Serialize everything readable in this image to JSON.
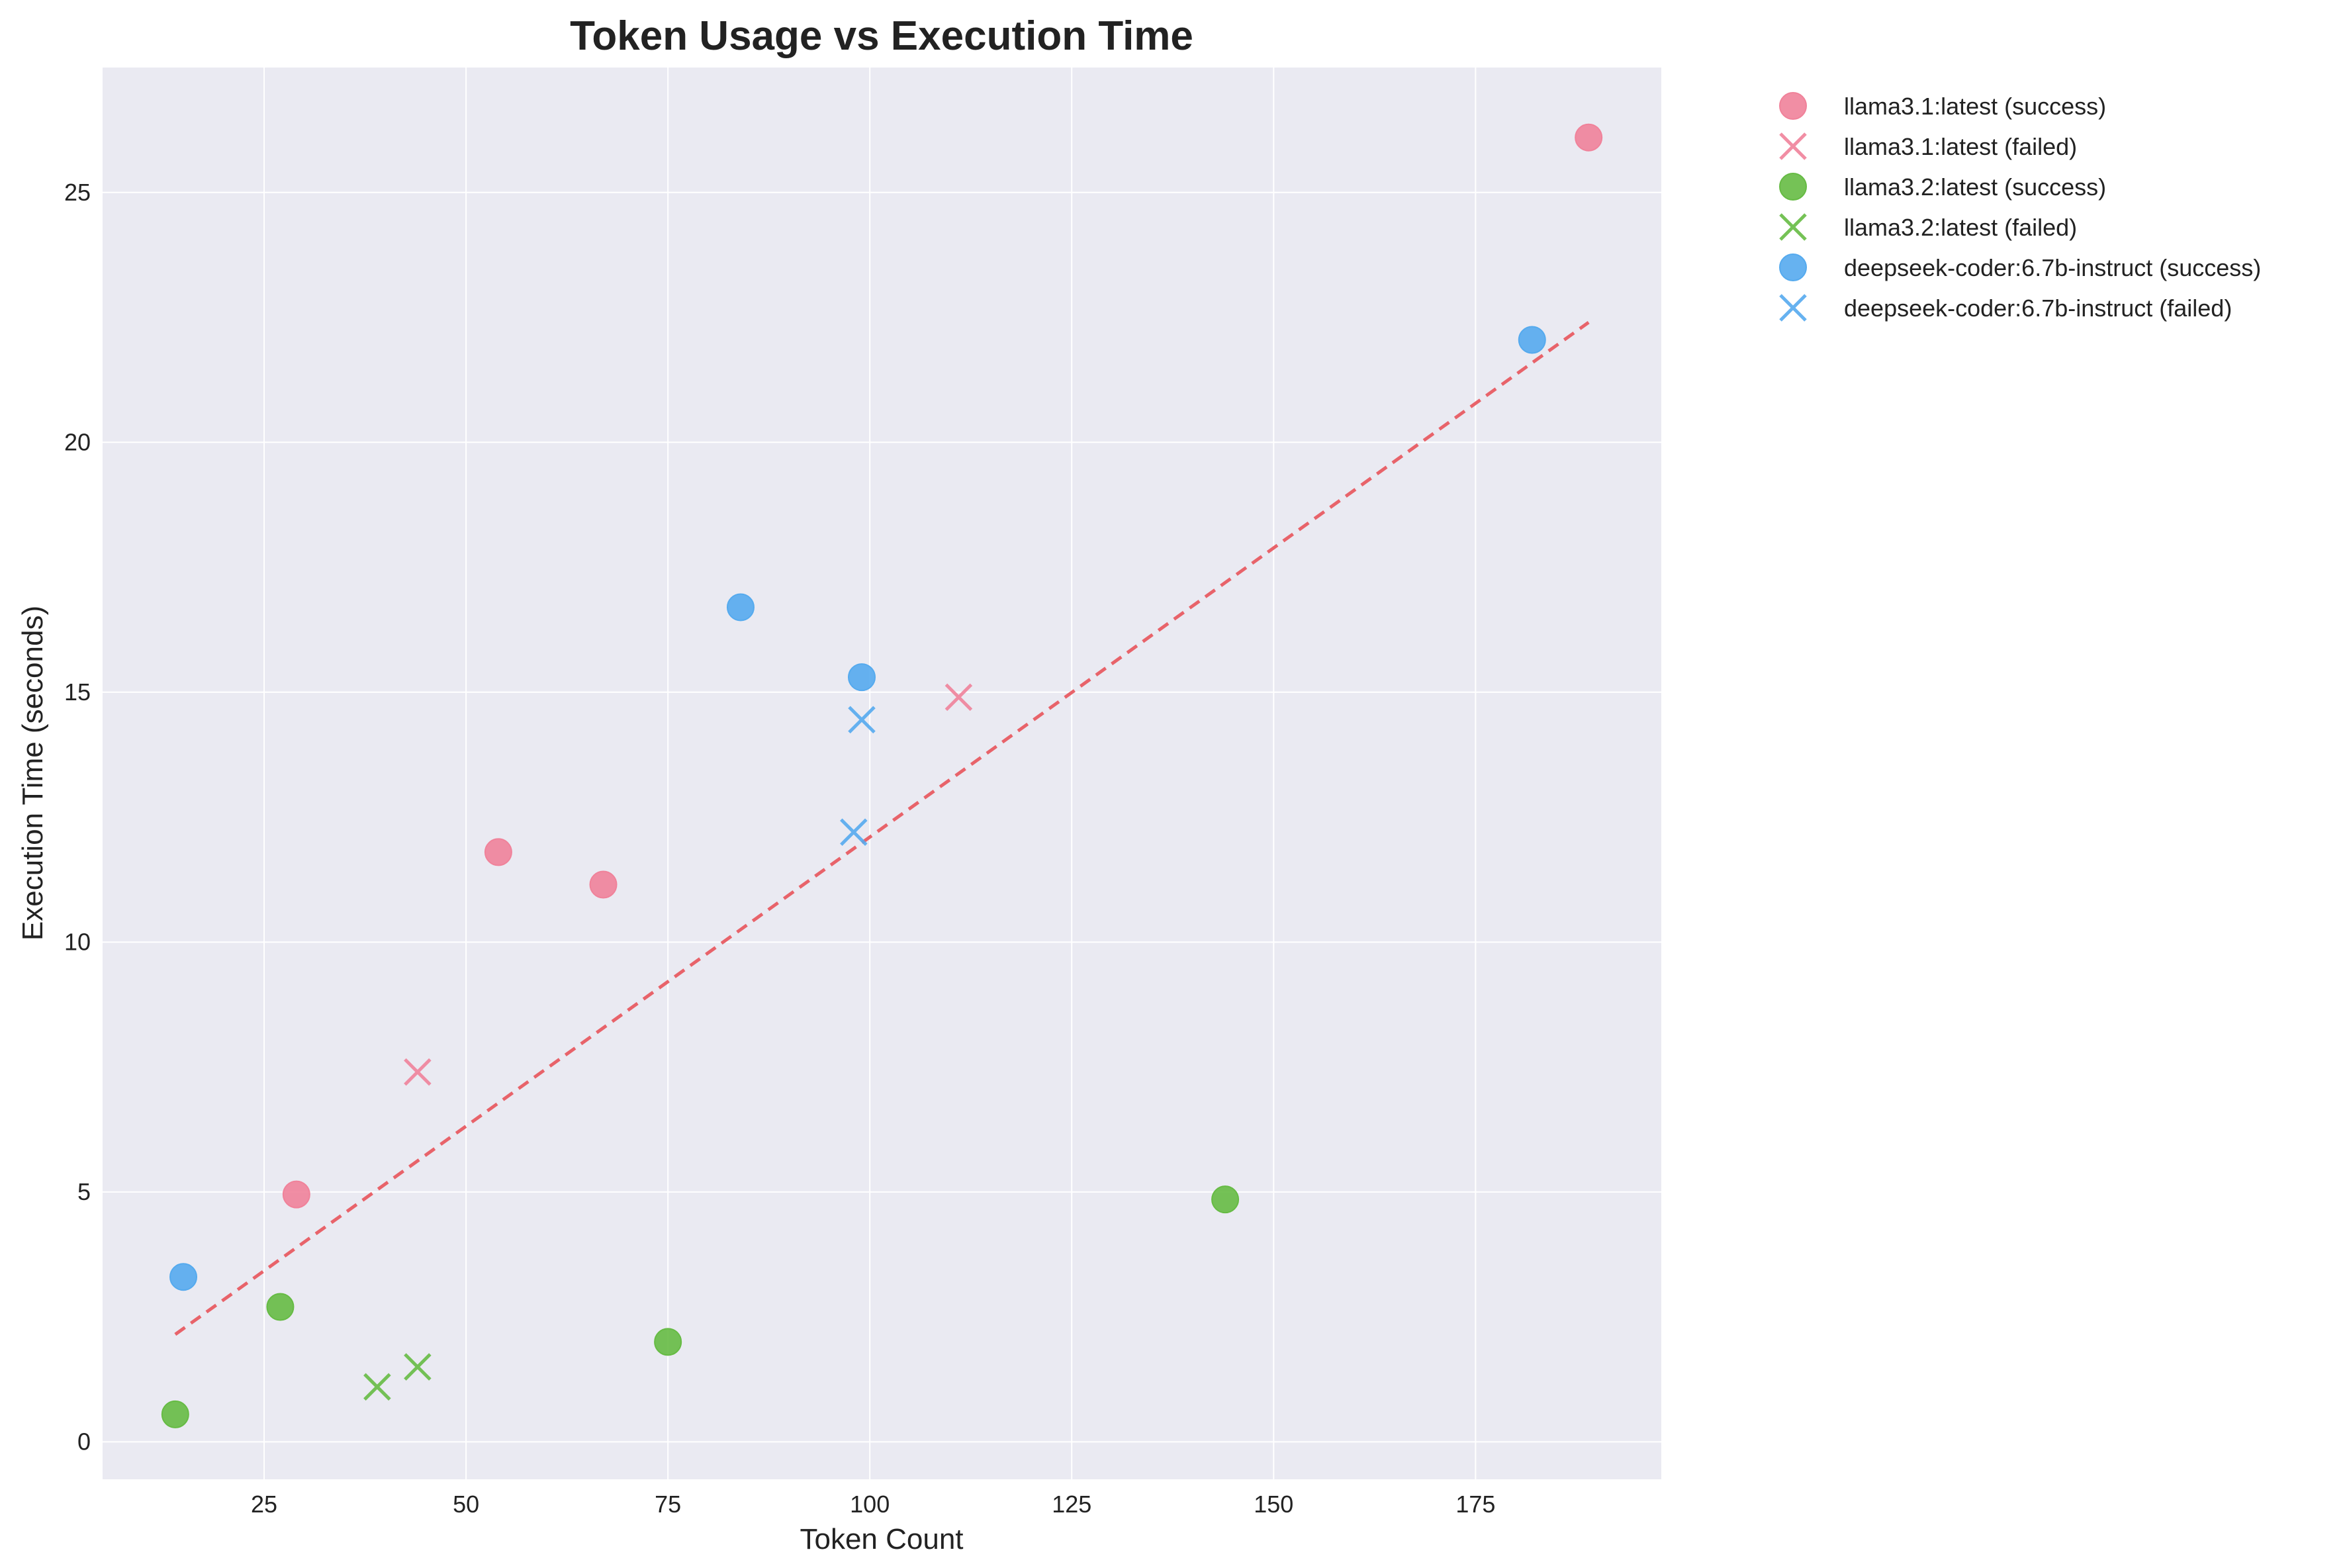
{
  "chart_data": {
    "type": "scatter",
    "title": "Token Usage vs Execution Time",
    "xlabel": "Token Count",
    "ylabel": "Execution Time (seconds)",
    "xlim": [
      5,
      198
    ],
    "ylim": [
      -0.75,
      27.5
    ],
    "xticks": [
      25,
      50,
      75,
      100,
      125,
      150,
      175
    ],
    "yticks": [
      0,
      5,
      10,
      15,
      20,
      25
    ],
    "grid": true,
    "legend_position": "outside-top-right",
    "series": [
      {
        "name": "llama3.1:latest (success)",
        "color": "#f0829a",
        "marker": "circle",
        "points": [
          [
            29,
            4.95
          ],
          [
            54,
            11.8
          ],
          [
            67,
            11.15
          ],
          [
            189,
            26.1
          ]
        ]
      },
      {
        "name": "llama3.1:latest (failed)",
        "color": "#f0829a",
        "marker": "x",
        "points": [
          [
            44,
            7.4
          ],
          [
            111,
            14.9
          ]
        ]
      },
      {
        "name": "llama3.2:latest (success)",
        "color": "#66bb44",
        "marker": "circle",
        "points": [
          [
            14,
            0.55
          ],
          [
            27,
            2.7
          ],
          [
            75,
            2.0
          ],
          [
            144,
            4.85
          ]
        ]
      },
      {
        "name": "llama3.2:latest (failed)",
        "color": "#66bb44",
        "marker": "x",
        "points": [
          [
            39,
            1.1
          ],
          [
            44,
            1.5
          ]
        ]
      },
      {
        "name": "deepseek-coder:6.7b-instruct (success)",
        "color": "#55aaee",
        "marker": "circle",
        "points": [
          [
            15,
            3.3
          ],
          [
            84,
            16.7
          ],
          [
            99,
            15.3
          ],
          [
            182,
            22.05
          ]
        ]
      },
      {
        "name": "deepseek-coder:6.7b-instruct (failed)",
        "color": "#55aaee",
        "marker": "x",
        "points": [
          [
            98,
            12.2
          ],
          [
            99,
            14.45
          ]
        ]
      }
    ],
    "trendline": {
      "color": "#e8636a",
      "style": "dashed",
      "x": [
        14,
        189
      ],
      "y": [
        2.15,
        22.4
      ]
    }
  }
}
